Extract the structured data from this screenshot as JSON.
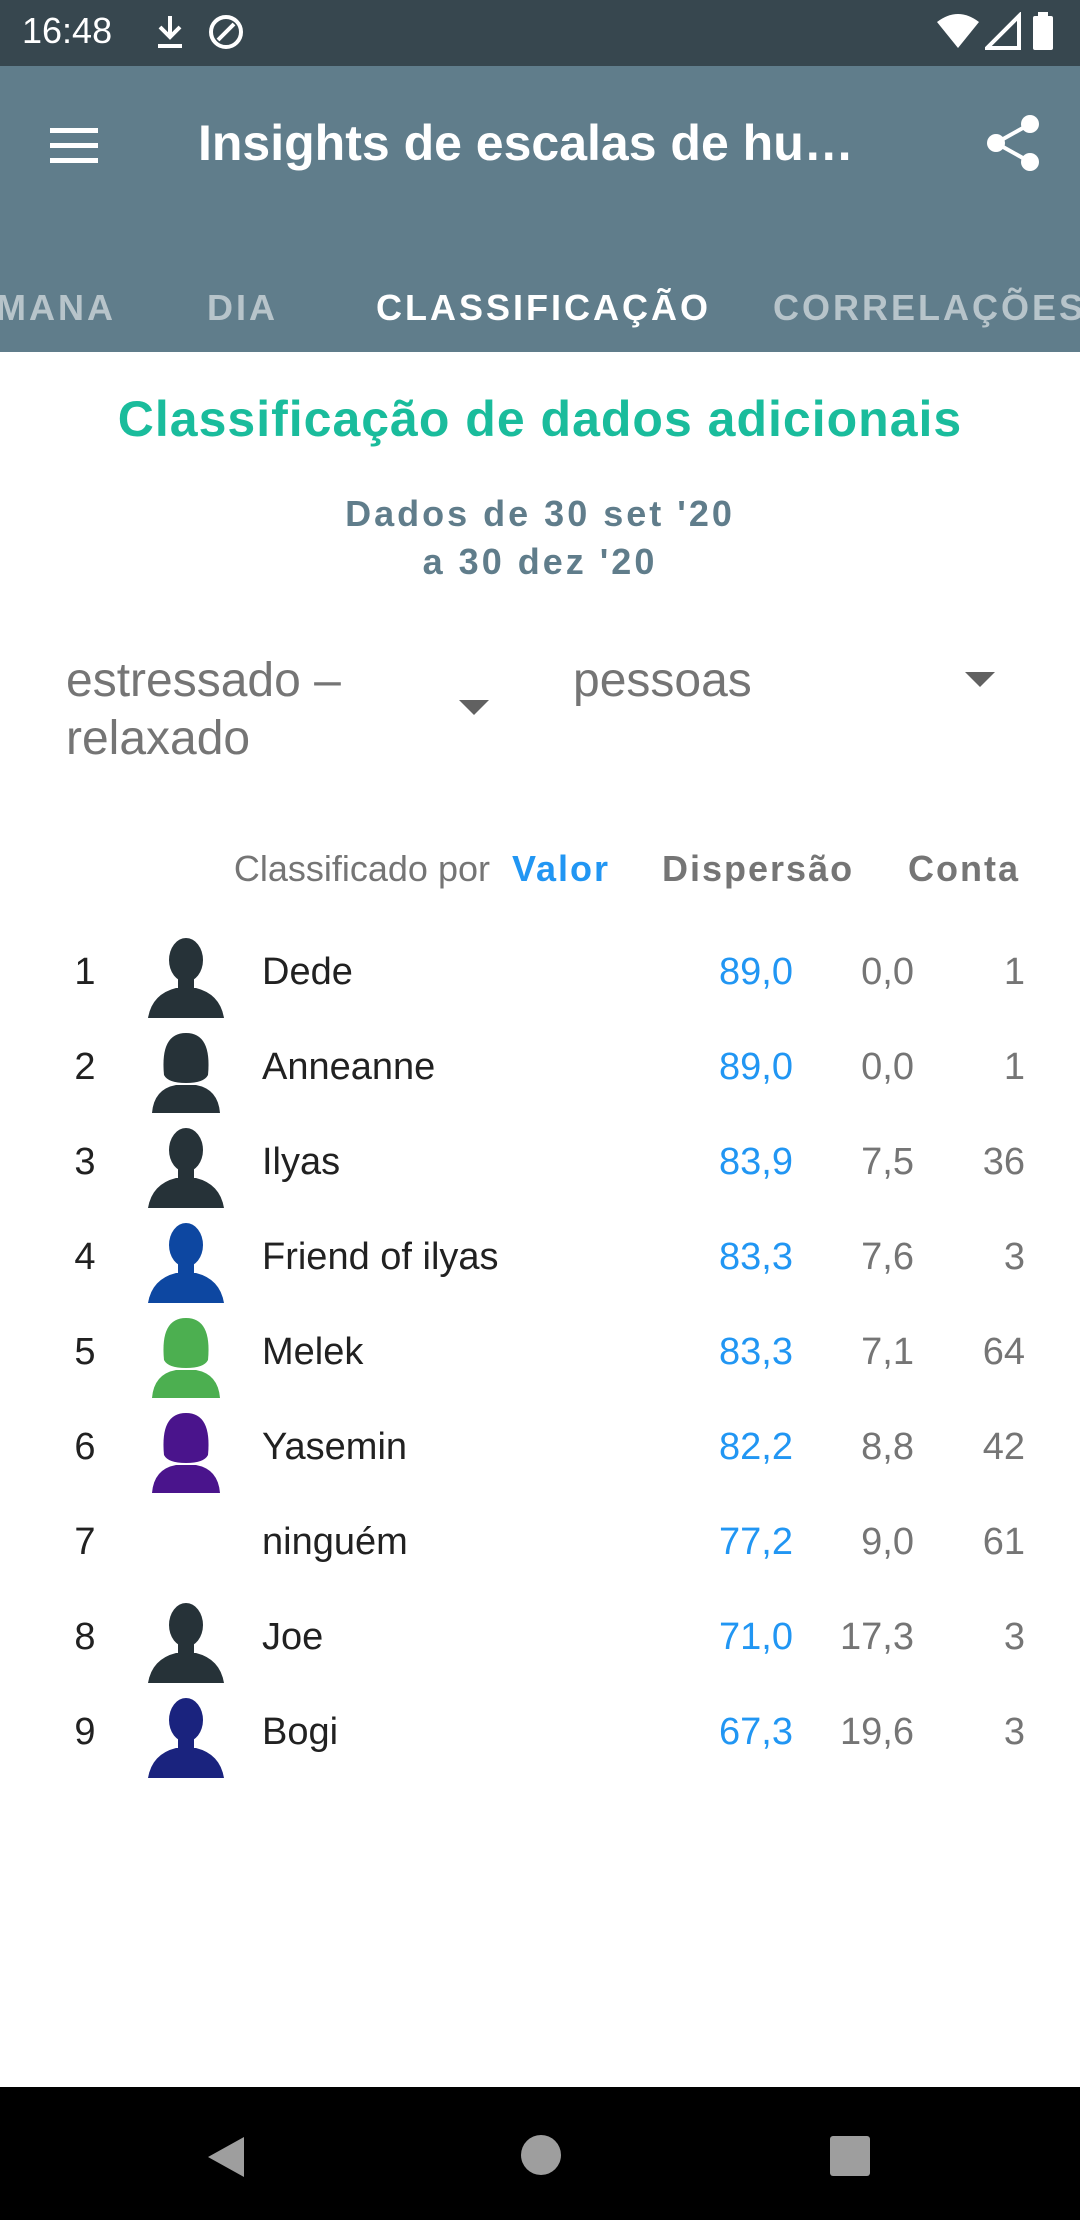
{
  "status": {
    "time": "16:48"
  },
  "appbar": {
    "title": "Insights de escalas de hu…",
    "tabs": [
      {
        "label": "MANA"
      },
      {
        "label": "DIA"
      },
      {
        "label": "CLASSIFICAÇÃO"
      },
      {
        "label": "CORRELAÇÕES"
      }
    ]
  },
  "content": {
    "title": "Classificação de dados adicionais",
    "date_line1": "Dados de 30 set '20",
    "date_line2": "a 30 dez '20",
    "dropdown_scale": "estressado – relaxado",
    "dropdown_group": "pessoas",
    "sorted_by_label": "Classificado por",
    "col_value": "Valor",
    "col_dispersion": "Dispersão",
    "col_count": "Conta"
  },
  "rows": [
    {
      "rank": "1",
      "name": "Dede",
      "value": "89,0",
      "dispersion": "0,0",
      "count": "1",
      "avatar": "male-silhouette-icon",
      "color": "#263238"
    },
    {
      "rank": "2",
      "name": "Anneanne",
      "value": "89,0",
      "dispersion": "0,0",
      "count": "1",
      "avatar": "female-silhouette-icon",
      "color": "#263238"
    },
    {
      "rank": "3",
      "name": "Ilyas",
      "value": "83,9",
      "dispersion": "7,5",
      "count": "36",
      "avatar": "male-silhouette-icon",
      "color": "#263238"
    },
    {
      "rank": "4",
      "name": "Friend of ilyas",
      "value": "83,3",
      "dispersion": "7,6",
      "count": "3",
      "avatar": "male-silhouette-icon",
      "color": "#0d47a1"
    },
    {
      "rank": "5",
      "name": "Melek",
      "value": "83,3",
      "dispersion": "7,1",
      "count": "64",
      "avatar": "female-silhouette-icon",
      "color": "#4caf50"
    },
    {
      "rank": "6",
      "name": "Yasemin",
      "value": "82,2",
      "dispersion": "8,8",
      "count": "42",
      "avatar": "female-silhouette-icon",
      "color": "#4a148c"
    },
    {
      "rank": "7",
      "name": "ninguém",
      "value": "77,2",
      "dispersion": "9,0",
      "count": "61",
      "avatar": "",
      "color": ""
    },
    {
      "rank": "8",
      "name": "Joe",
      "value": "71,0",
      "dispersion": "17,3",
      "count": "3",
      "avatar": "male-silhouette-icon",
      "color": "#263238"
    },
    {
      "rank": "9",
      "name": "Bogi",
      "value": "67,3",
      "dispersion": "19,6",
      "count": "3",
      "avatar": "male-silhouette-icon",
      "color": "#1a237e"
    }
  ],
  "colors": {
    "accent": "#1abc9c",
    "link": "#2196f3",
    "appbar": "#607d8b",
    "statusbar": "#37474f"
  }
}
